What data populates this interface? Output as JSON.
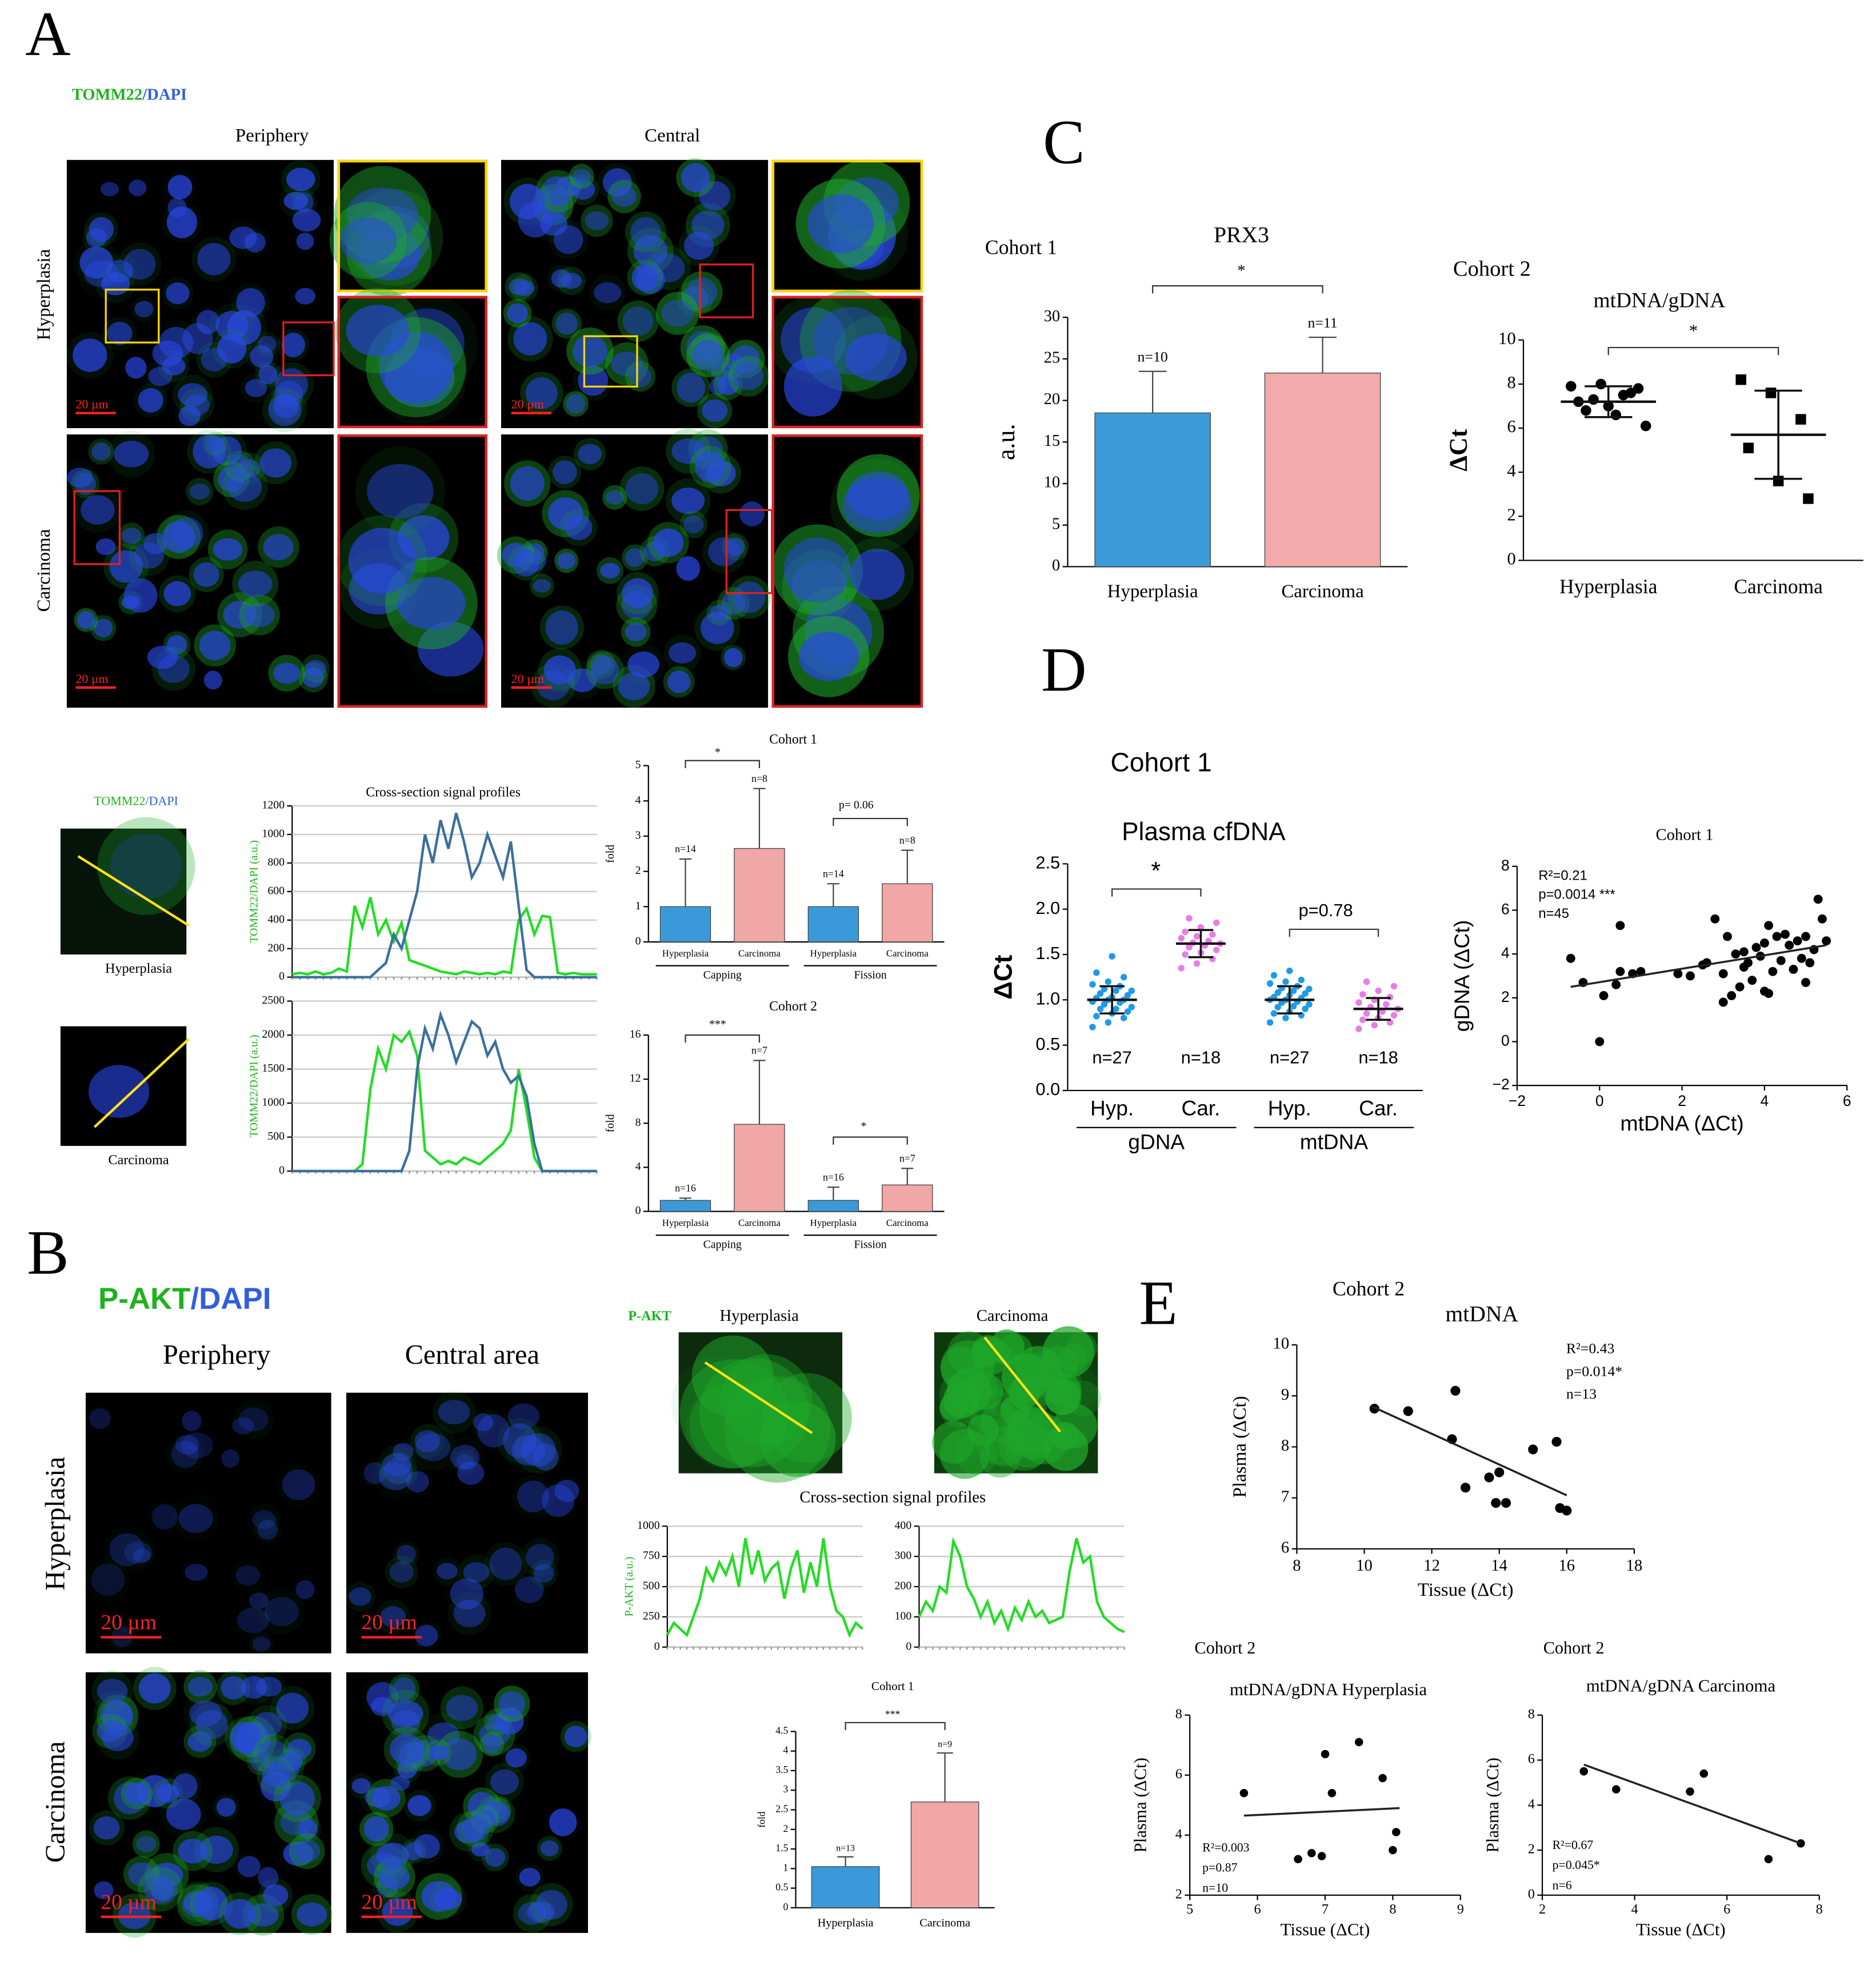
{
  "figure": {
    "panel_labels": [
      "A",
      "B",
      "C",
      "D",
      "E"
    ],
    "A": {
      "stain": [
        "TOMM22",
        "/DAPI"
      ],
      "columns": [
        "Periphery",
        "Central"
      ],
      "rows": [
        "Hyperplasia",
        "Carcinoma"
      ],
      "scale_bar": "20 µm",
      "profile_stain": [
        "TOMM22",
        "/DAPI"
      ],
      "profile_cells": [
        "Hyperplasia",
        "Carcinoma"
      ]
    },
    "B": {
      "stain": [
        "P-AKT",
        "/DAPI"
      ],
      "columns": [
        "Periphery",
        "Central area"
      ],
      "rows": [
        "Hyperplasia",
        "Carcinoma"
      ],
      "scale_bar": "20 µm",
      "profile_stain": "P-AKT",
      "profile_cells": [
        "Hyperplasia",
        "Carcinoma"
      ]
    }
  },
  "chart_data": [
    {
      "type": "bar",
      "title": "Cohort 1",
      "categories": [
        "Hyperplasia",
        "Carcinoma",
        "Hyperplasia",
        "Carcinoma"
      ],
      "groups": [
        "Capping",
        "Fission"
      ],
      "values": [
        1,
        2.65,
        1,
        1.65
      ],
      "errors": [
        1.35,
        1.7,
        0.65,
        0.95
      ],
      "n_labels": [
        "n=14",
        "n=8",
        "n=14",
        "n=8"
      ],
      "colors": [
        "#3a9ad9",
        "#f2a7a7",
        "#3a9ad9",
        "#f2a7a7"
      ],
      "ylabel": "fold",
      "ylim": [
        0,
        5
      ],
      "yticks": [
        0,
        1,
        2,
        3,
        4,
        5
      ],
      "annotations": [
        "*",
        "p= 0.06"
      ]
    },
    {
      "type": "bar",
      "title": "Cohort 2",
      "categories": [
        "Hyperplasia",
        "Carcinoma",
        "Hyperplasia",
        "Carcinoma"
      ],
      "groups": [
        "Capping",
        "Fission"
      ],
      "values": [
        1,
        7.9,
        1,
        2.4
      ],
      "errors": [
        0.2,
        5.8,
        1.2,
        1.5
      ],
      "n_labels": [
        "n=16",
        "n=7",
        "n=16",
        "n=7"
      ],
      "colors": [
        "#3a9ad9",
        "#f2a7a7",
        "#3a9ad9",
        "#f2a7a7"
      ],
      "ylabel": "fold",
      "ylim": [
        0,
        16
      ],
      "yticks": [
        0,
        4,
        8,
        12,
        16
      ],
      "annotations": [
        "***",
        "*"
      ]
    },
    {
      "type": "line",
      "title": "Cross-section signal profiles",
      "ylabel": "TOMM22/DAPI (a.u.)",
      "ylim": [
        0,
        1200
      ],
      "yticks": [
        0,
        200,
        400,
        600,
        800,
        1000,
        1200
      ],
      "grid": true,
      "series": [
        {
          "color": "#22dd22",
          "values": [
            20,
            30,
            20,
            40,
            20,
            30,
            60,
            40,
            500,
            350,
            560,
            300,
            400,
            250,
            380,
            120,
            100,
            80,
            60,
            40,
            30,
            20,
            40,
            30,
            20,
            30,
            20,
            40,
            30,
            400,
            480,
            300,
            430,
            420,
            30,
            20,
            30,
            20,
            20,
            20
          ]
        },
        {
          "color": "#3a6fa0",
          "values": [
            0,
            0,
            0,
            0,
            0,
            0,
            0,
            0,
            0,
            0,
            0,
            50,
            100,
            300,
            200,
            400,
            600,
            1000,
            800,
            1100,
            900,
            1150,
            950,
            700,
            800,
            1000,
            850,
            700,
            950,
            500,
            50,
            0,
            0,
            0,
            0,
            0,
            0,
            0,
            0,
            0
          ]
        }
      ]
    },
    {
      "type": "line",
      "ylabel": "TOMM22/DAPI (a.u.)",
      "ylim": [
        0,
        2500
      ],
      "yticks": [
        0,
        500,
        1000,
        1500,
        2000,
        2500
      ],
      "grid": true,
      "series": [
        {
          "color": "#22dd22",
          "values": [
            0,
            0,
            0,
            0,
            0,
            0,
            0,
            0,
            0,
            100,
            1200,
            1800,
            1500,
            2000,
            1900,
            2050,
            1700,
            300,
            200,
            100,
            150,
            100,
            200,
            150,
            100,
            200,
            300,
            400,
            600,
            1500,
            900,
            200,
            0,
            0,
            0,
            0,
            0,
            0,
            0,
            0
          ]
        },
        {
          "color": "#3a6fa0",
          "values": [
            0,
            0,
            0,
            0,
            0,
            0,
            0,
            0,
            0,
            0,
            0,
            0,
            0,
            0,
            0,
            300,
            1500,
            2100,
            1800,
            2300,
            2000,
            1600,
            1900,
            2200,
            2100,
            1700,
            1900,
            1500,
            1300,
            1400,
            1100,
            400,
            0,
            0,
            0,
            0,
            0,
            0,
            0,
            0
          ]
        }
      ]
    },
    {
      "type": "line",
      "title": "Cross-section signal profiles",
      "ylabel": "P-AKT (a.u.)",
      "ylim": [
        0,
        1000
      ],
      "yticks": [
        0,
        250,
        500,
        750,
        1000
      ],
      "grid": true,
      "series": [
        {
          "color": "#22dd22",
          "values": [
            100,
            200,
            150,
            100,
            250,
            400,
            650,
            550,
            700,
            600,
            750,
            500,
            900,
            600,
            800,
            550,
            650,
            700,
            400,
            650,
            800,
            450,
            700,
            500,
            900,
            500,
            300,
            250,
            100,
            200,
            150
          ]
        }
      ]
    },
    {
      "type": "line",
      "ylim": [
        0,
        400
      ],
      "yticks": [
        0,
        100,
        200,
        300,
        400
      ],
      "grid": true,
      "series": [
        {
          "color": "#22dd22",
          "values": [
            100,
            150,
            120,
            200,
            180,
            350,
            300,
            200,
            160,
            100,
            150,
            80,
            120,
            60,
            130,
            90,
            150,
            100,
            120,
            80,
            90,
            100,
            250,
            360,
            280,
            300,
            150,
            100,
            80,
            60,
            50
          ]
        }
      ]
    },
    {
      "type": "bar",
      "title": "Cohort 1",
      "categories": [
        "Hyperplasia",
        "Carcinoma"
      ],
      "values": [
        1.05,
        2.7
      ],
      "errors": [
        0.25,
        1.25
      ],
      "n_labels": [
        "n=13",
        "n=9"
      ],
      "colors": [
        "#3a9ad9",
        "#f2a7a7"
      ],
      "ylabel": "fold",
      "ylim": [
        0,
        4.5
      ],
      "yticks": [
        0,
        0.5,
        1,
        1.5,
        2,
        2.5,
        3,
        3.5,
        4,
        4.5
      ],
      "annotations": [
        "***"
      ]
    },
    {
      "type": "bar",
      "title": "PRX3",
      "cohort": "Cohort 1",
      "categories": [
        "Hyperplasia",
        "Carcinoma"
      ],
      "values": [
        18.5,
        23.3
      ],
      "errors": [
        5,
        4.3
      ],
      "n_labels": [
        "n=10",
        "n=11"
      ],
      "colors": [
        "#3b9bd8",
        "#f2aaaa"
      ],
      "ylabel": "a.u.",
      "ylim": [
        0,
        30
      ],
      "yticks": [
        0,
        5,
        10,
        15,
        20,
        25,
        30
      ],
      "annotations": [
        "*"
      ]
    },
    {
      "type": "strip",
      "title": "mtDNA/gDNA",
      "cohort": "Cohort 2",
      "categories": [
        "Hyperplasia",
        "Carcinoma"
      ],
      "values": [
        [
          7.9,
          8.0,
          7.6,
          7.2,
          7.0,
          7.8,
          6.8,
          6.6,
          6.1,
          7.3,
          7.5
        ],
        [
          8.2,
          7.6,
          6.4,
          5.1,
          3.6,
          2.8
        ]
      ],
      "mean": [
        7.2,
        5.7
      ],
      "sd": [
        0.7,
        2.0
      ],
      "markers": [
        "circle",
        "square"
      ],
      "colors": [
        "#000000",
        "#000000"
      ],
      "ylabel": "ΔCt",
      "ylim": [
        0,
        10
      ],
      "yticks": [
        0,
        2,
        4,
        6,
        8,
        10
      ],
      "annotations": [
        "*"
      ]
    },
    {
      "type": "strip",
      "title": "Plasma cfDNA",
      "cohort": "Cohort 1",
      "categories": [
        "Hyp.",
        "Car.",
        "Hyp.",
        "Car."
      ],
      "groups": [
        "gDNA",
        "mtDNA"
      ],
      "values": [
        [
          0.7,
          0.75,
          0.8,
          0.82,
          0.85,
          0.87,
          0.9,
          0.9,
          0.92,
          0.95,
          0.97,
          0.98,
          1.0,
          1.0,
          1.02,
          1.03,
          1.05,
          1.07,
          1.1,
          1.1,
          1.12,
          1.15,
          1.17,
          1.2,
          1.25,
          1.3,
          1.48
        ],
        [
          1.35,
          1.4,
          1.45,
          1.5,
          1.52,
          1.55,
          1.58,
          1.6,
          1.62,
          1.63,
          1.65,
          1.68,
          1.7,
          1.72,
          1.75,
          1.8,
          1.85,
          1.9
        ],
        [
          0.75,
          0.8,
          0.83,
          0.85,
          0.87,
          0.9,
          0.92,
          0.93,
          0.95,
          0.97,
          0.98,
          1.0,
          1.0,
          1.02,
          1.03,
          1.05,
          1.07,
          1.08,
          1.1,
          1.12,
          1.13,
          1.15,
          1.18,
          1.2,
          1.22,
          1.27,
          1.32
        ],
        [
          0.68,
          0.72,
          0.75,
          0.78,
          0.8,
          0.83,
          0.85,
          0.87,
          0.9,
          0.92,
          0.95,
          0.97,
          1.0,
          1.03,
          1.06,
          1.1,
          1.15,
          1.2
        ]
      ],
      "mean": [
        1.0,
        1.62,
        1.0,
        0.9
      ],
      "sd": [
        0.15,
        0.15,
        0.15,
        0.12
      ],
      "n_labels": [
        "n=27",
        "n=18",
        "n=27",
        "n=18"
      ],
      "markers": [
        "circle",
        "circle",
        "circle",
        "circle"
      ],
      "colors": [
        "#1e9be8",
        "#e87de8",
        "#1e9be8",
        "#e87de8"
      ],
      "ylabel": "ΔCt",
      "ylim": [
        0,
        2.5
      ],
      "yticks": [
        {
          "value": 0,
          "label": "0.0"
        },
        0.5,
        {
          "value": 1,
          "label": "1.0"
        },
        1.5,
        {
          "value": 2,
          "label": "2.0"
        },
        2.5
      ],
      "annotations": [
        "*",
        "p=0.78"
      ]
    },
    {
      "type": "scatter",
      "title": "Cohort 1",
      "xlabel": "mtDNA (ΔCt)",
      "ylabel": "gDNA (ΔCt)",
      "x": [
        -0.7,
        -0.4,
        0,
        0.1,
        0.4,
        0.5,
        0.8,
        1.0,
        1.9,
        2.2,
        2.5,
        2.6,
        2.8,
        3.0,
        3.0,
        3.1,
        3.2,
        3.3,
        3.4,
        3.5,
        3.6,
        3.7,
        3.8,
        3.9,
        4.0,
        4.0,
        4.1,
        4.1,
        4.2,
        4.3,
        4.4,
        4.5,
        4.6,
        4.7,
        4.8,
        4.9,
        5.0,
        5.0,
        5.1,
        5.2,
        5.3,
        5.4,
        5.5,
        0.5,
        3.5
      ],
      "y": [
        3.8,
        2.7,
        0,
        2.1,
        2.6,
        5.3,
        3.1,
        3.2,
        3.1,
        3.0,
        3.5,
        3.6,
        5.6,
        3.1,
        1.8,
        4.8,
        2.1,
        4.0,
        2.5,
        3.4,
        3.6,
        2.8,
        4.3,
        3.9,
        4.5,
        2.3,
        5.3,
        2.2,
        3.2,
        4.8,
        3.7,
        4.9,
        4.4,
        3.3,
        4.6,
        3.8,
        2.7,
        4.8,
        3.6,
        4.2,
        6.5,
        5.6,
        4.6,
        3.2,
        4.1
      ],
      "fit": {
        "x": [
          -0.7,
          5.5
        ],
        "y": [
          2.5,
          4.4
        ]
      },
      "color": "#000000",
      "xlim": [
        -2,
        6
      ],
      "xticks": [
        {
          "value": -2,
          "label": "−2"
        },
        0,
        2,
        4,
        6
      ],
      "ylim": [
        -2,
        8
      ],
      "yticks": [
        {
          "value": -2,
          "label": "−2"
        },
        0,
        2,
        4,
        6,
        8
      ],
      "annotations": [
        "R²=0.21",
        "p=0.0014 ***",
        "n=45"
      ]
    },
    {
      "type": "scatter",
      "title": "mtDNA",
      "cohort": "Cohort 2",
      "xlabel": "Tissue (ΔCt)",
      "ylabel": "Plasma (ΔCt)",
      "x": [
        10.3,
        11.3,
        12.7,
        12.6,
        13.0,
        13.7,
        14.0,
        14.2,
        13.9,
        15.0,
        15.7,
        15.8,
        16.0
      ],
      "y": [
        8.75,
        8.7,
        9.1,
        8.15,
        7.2,
        7.4,
        7.5,
        6.9,
        6.9,
        7.95,
        8.1,
        6.8,
        6.75
      ],
      "fit": {
        "x": [
          10.2,
          16.0
        ],
        "y": [
          8.8,
          7.05
        ]
      },
      "color": "#000000",
      "xlim": [
        8,
        18
      ],
      "xticks": [
        8,
        10,
        12,
        14,
        16,
        18
      ],
      "ylim": [
        6,
        10
      ],
      "yticks": [
        6,
        7,
        8,
        9,
        10
      ],
      "annotations": [
        "R²=0.43",
        "p=0.014*",
        "n=13"
      ]
    },
    {
      "type": "scatter",
      "title": "mtDNA/gDNA Hyperplasia",
      "cohort": "Cohort 2",
      "xlabel": "Tissue (ΔCt)",
      "ylabel": "Plasma (ΔCt)",
      "x": [
        5.8,
        6.6,
        6.8,
        6.95,
        7.0,
        7.1,
        7.5,
        7.85,
        8.0,
        8.05
      ],
      "y": [
        5.4,
        3.2,
        3.4,
        3.3,
        6.7,
        5.4,
        7.1,
        5.9,
        3.5,
        4.1
      ],
      "fit": {
        "x": [
          5.8,
          8.1
        ],
        "y": [
          4.65,
          4.9
        ]
      },
      "color": "#000000",
      "xlim": [
        5,
        9
      ],
      "xticks": [
        5,
        6,
        7,
        8,
        9
      ],
      "ylim": [
        2,
        8
      ],
      "yticks": [
        2,
        4,
        6,
        8
      ],
      "annotations": [
        "R²=0.003",
        "p=0.87",
        "n=10"
      ]
    },
    {
      "type": "scatter",
      "title": "mtDNA/gDNA Carcinoma",
      "cohort": "Cohort 2",
      "xlabel": "Tissue (ΔCt)",
      "ylabel": "Plasma (ΔCt)",
      "x": [
        2.9,
        3.6,
        5.2,
        5.5,
        6.9,
        7.6
      ],
      "y": [
        5.5,
        4.7,
        4.6,
        5.4,
        1.6,
        2.3
      ],
      "fit": {
        "x": [
          2.9,
          7.6
        ],
        "y": [
          5.8,
          2.3
        ]
      },
      "color": "#000000",
      "xlim": [
        2,
        8
      ],
      "xticks": [
        2,
        4,
        6,
        8
      ],
      "ylim": [
        0,
        8
      ],
      "yticks": [
        0,
        2,
        4,
        6,
        8
      ],
      "annotations": [
        "R²=0.67",
        "p=0.045*",
        "n=6"
      ]
    }
  ]
}
